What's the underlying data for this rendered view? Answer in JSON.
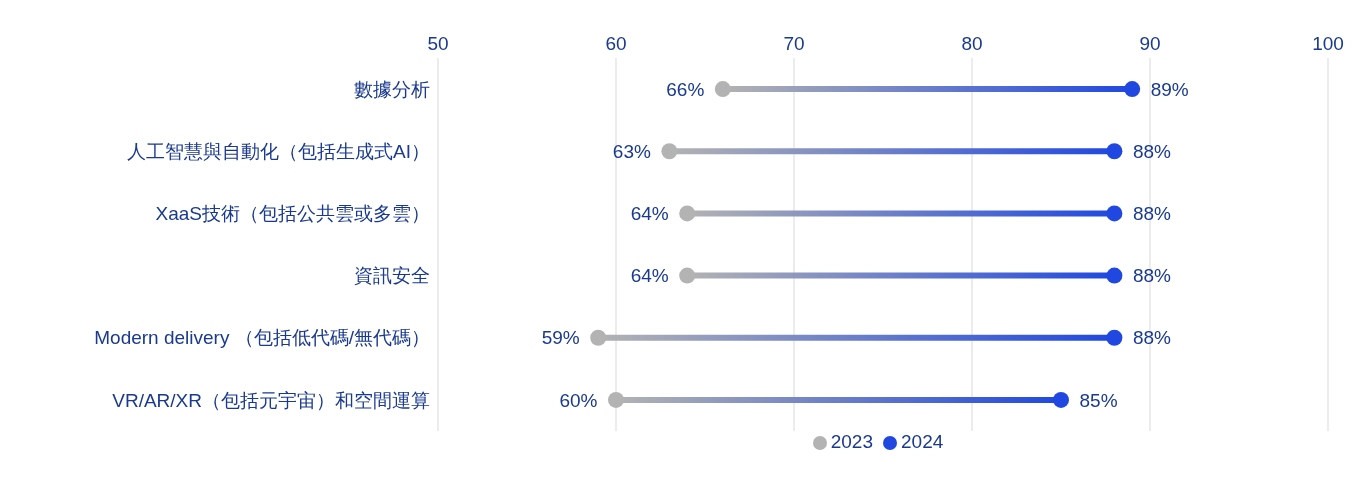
{
  "chart_data": {
    "type": "scatter",
    "orientation": "horizontal",
    "categories": [
      "數據分析",
      "人工智慧與自動化（包括生成式AI）",
      "XaaS技術（包括公共雲或多雲）",
      "資訊安全",
      "Modern delivery （包括低代碼/無代碼）",
      "VR/AR/XR（包括元宇宙）和空間運算"
    ],
    "series": [
      {
        "name": "2023",
        "color": "#b3b3b3",
        "values": [
          66,
          63,
          64,
          64,
          59,
          60
        ],
        "value_labels": [
          "66%",
          "63%",
          "64%",
          "64%",
          "59%",
          "60%"
        ]
      },
      {
        "name": "2024",
        "color": "#2048e0",
        "values": [
          89,
          88,
          88,
          88,
          88,
          85
        ],
        "value_labels": [
          "89%",
          "88%",
          "88%",
          "88%",
          "88%",
          "85%"
        ]
      }
    ],
    "xlim": [
      50,
      100
    ],
    "xticks": [
      50,
      60,
      70,
      80,
      90,
      100
    ],
    "grid": "x",
    "legend": "bottom",
    "marker": "circle"
  }
}
